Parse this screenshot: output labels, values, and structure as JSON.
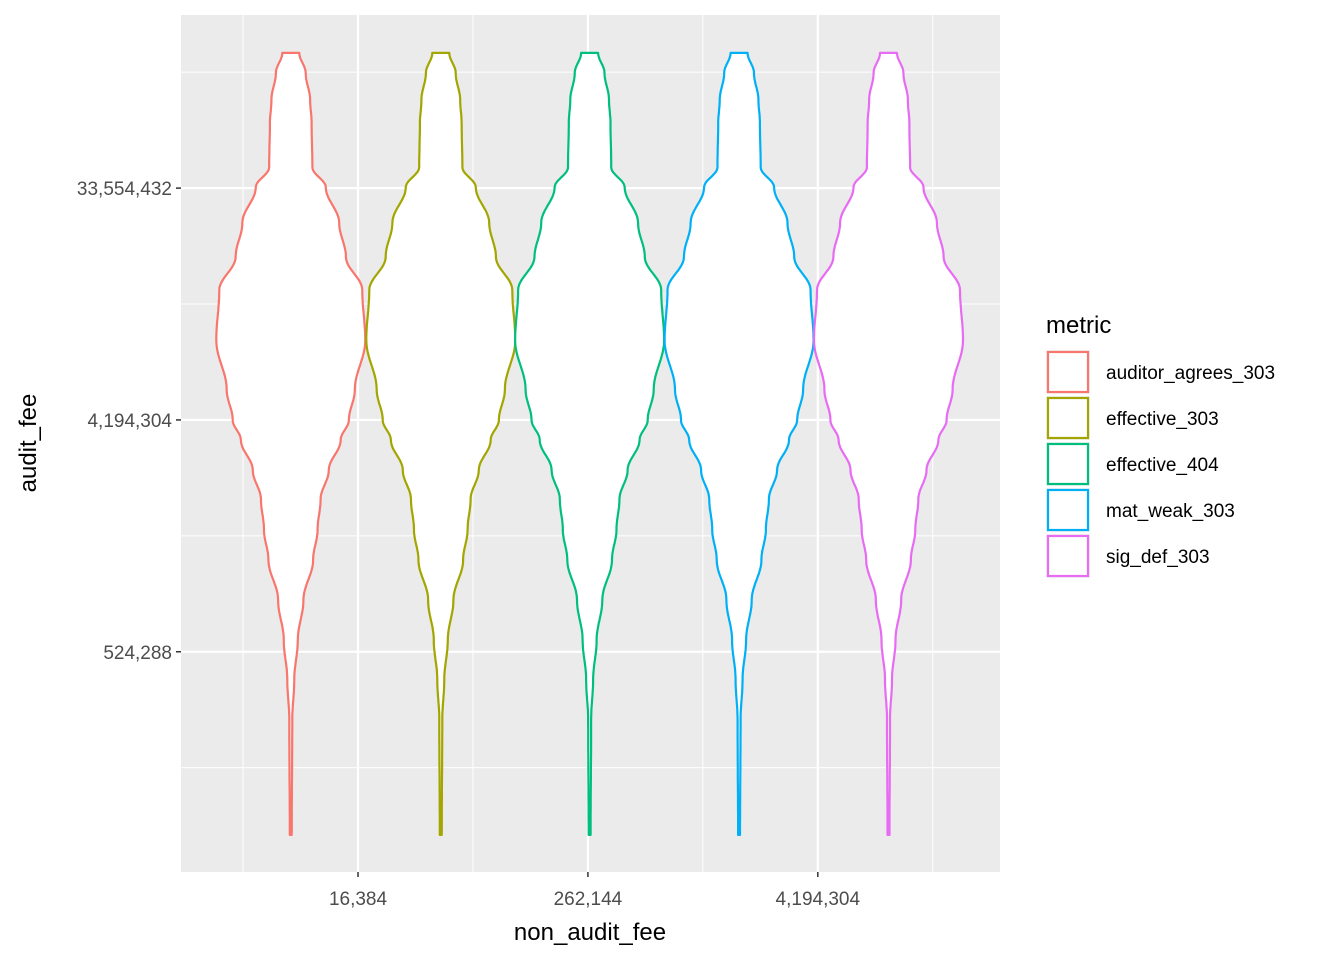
{
  "chart_data": {
    "type": "violin",
    "xlabel": "non_audit_fee",
    "ylabel": "audit_fee",
    "x_scale": "log2",
    "y_scale": "log2",
    "x_ticks": [
      {
        "value": 16384,
        "label": "16,384"
      },
      {
        "value": 262144,
        "label": "262,144"
      },
      {
        "value": 4194304,
        "label": "4,194,304"
      }
    ],
    "y_ticks": [
      {
        "value": 524288,
        "label": "524,288"
      },
      {
        "value": 4194304,
        "label": "4,194,304"
      },
      {
        "value": 33554432,
        "label": "33,554,432"
      }
    ],
    "xlim_log2": [
      10.92,
      25.17
    ],
    "ylim_log2": [
      16.15,
      27.24
    ],
    "x_minor_log2": [
      12,
      16,
      20,
      24
    ],
    "y_minor_log2": [
      17.5,
      20.5,
      23.5,
      26.5
    ],
    "legend": {
      "title": "metric",
      "position": "right"
    },
    "density_profile": {
      "y_log2": [
        26.75,
        26.49,
        26.14,
        25.84,
        25.27,
        25.01,
        24.55,
        24.11,
        23.68,
        23.03,
        22.39,
        22.0,
        21.74,
        21.35,
        20.97,
        20.58,
        20.19,
        19.67,
        19.15,
        18.64,
        18.12,
        16.63
      ],
      "relative_width": [
        0.114,
        0.2,
        0.26,
        0.28,
        0.29,
        0.47,
        0.65,
        0.74,
        0.96,
        1.0,
        0.86,
        0.78,
        0.67,
        0.51,
        0.4,
        0.36,
        0.3,
        0.17,
        0.094,
        0.047,
        0.02,
        0.013
      ]
    },
    "series": [
      {
        "name": "auditor_agrees_303",
        "color": "#F8766D",
        "x_log2": 12.83
      },
      {
        "name": "effective_303",
        "color": "#A3A500",
        "x_log2": 15.44
      },
      {
        "name": "effective_404",
        "color": "#00BF7D",
        "x_log2": 18.03
      },
      {
        "name": "mat_weak_303",
        "color": "#00B0F6",
        "x_log2": 20.63
      },
      {
        "name": "sig_def_303",
        "color": "#E76BF3",
        "x_log2": 23.23
      }
    ]
  }
}
